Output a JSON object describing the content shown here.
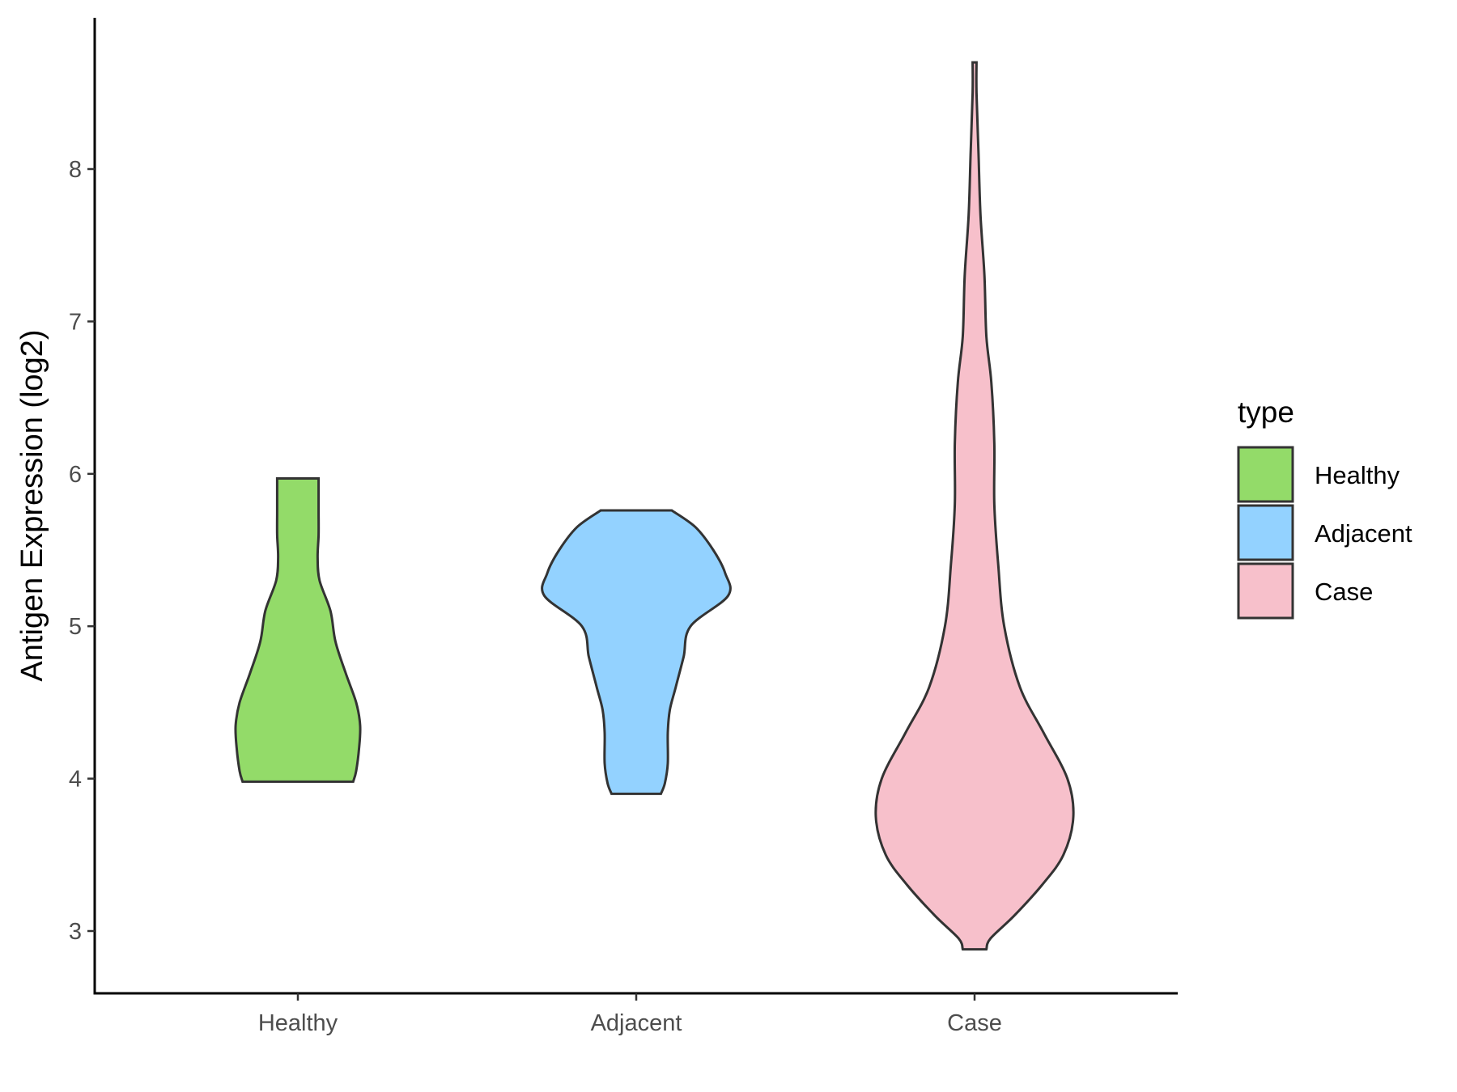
{
  "chart_data": {
    "type": "violin",
    "ylabel": "Antigen Expression (log2)",
    "xlabel": "",
    "ylim": [
      2.6,
      9.0
    ],
    "yticks": [
      3,
      4,
      5,
      6,
      7,
      8
    ],
    "categories": [
      "Healthy",
      "Adjacent",
      "Case"
    ],
    "legend": {
      "title": "type",
      "position": "right",
      "entries": [
        "Healthy",
        "Adjacent",
        "Case"
      ]
    },
    "grid": false,
    "series": [
      {
        "name": "Healthy",
        "color": "#93db69",
        "min": 3.98,
        "max": 5.97,
        "density_profile": [
          [
            3.98,
            0.56
          ],
          [
            4.05,
            0.59
          ],
          [
            4.2,
            0.62
          ],
          [
            4.35,
            0.63
          ],
          [
            4.5,
            0.59
          ],
          [
            4.7,
            0.48
          ],
          [
            4.9,
            0.38
          ],
          [
            5.1,
            0.33
          ],
          [
            5.3,
            0.22
          ],
          [
            5.45,
            0.2
          ],
          [
            5.6,
            0.21
          ],
          [
            5.75,
            0.21
          ],
          [
            5.88,
            0.21
          ],
          [
            5.97,
            0.21
          ]
        ]
      },
      {
        "name": "Adjacent",
        "color": "#93d2ff",
        "min": 3.9,
        "max": 5.76,
        "density_profile": [
          [
            3.9,
            0.25
          ],
          [
            3.97,
            0.29
          ],
          [
            4.1,
            0.32
          ],
          [
            4.3,
            0.32
          ],
          [
            4.45,
            0.34
          ],
          [
            4.6,
            0.4
          ],
          [
            4.8,
            0.48
          ],
          [
            5.0,
            0.55
          ],
          [
            5.2,
            0.93
          ],
          [
            5.35,
            0.9
          ],
          [
            5.5,
            0.78
          ],
          [
            5.65,
            0.6
          ],
          [
            5.76,
            0.36
          ]
        ]
      },
      {
        "name": "Case",
        "color": "#f7c0cb",
        "min": 2.88,
        "max": 8.7,
        "density_profile": [
          [
            2.88,
            0.12
          ],
          [
            2.95,
            0.16
          ],
          [
            3.1,
            0.4
          ],
          [
            3.3,
            0.68
          ],
          [
            3.5,
            0.9
          ],
          [
            3.75,
            1.0
          ],
          [
            4.0,
            0.94
          ],
          [
            4.3,
            0.7
          ],
          [
            4.6,
            0.46
          ],
          [
            5.0,
            0.3
          ],
          [
            5.4,
            0.24
          ],
          [
            5.8,
            0.2
          ],
          [
            6.2,
            0.2
          ],
          [
            6.6,
            0.17
          ],
          [
            6.9,
            0.12
          ],
          [
            7.3,
            0.1
          ],
          [
            7.7,
            0.06
          ],
          [
            8.1,
            0.04
          ],
          [
            8.5,
            0.02
          ],
          [
            8.7,
            0.02
          ]
        ]
      }
    ]
  }
}
